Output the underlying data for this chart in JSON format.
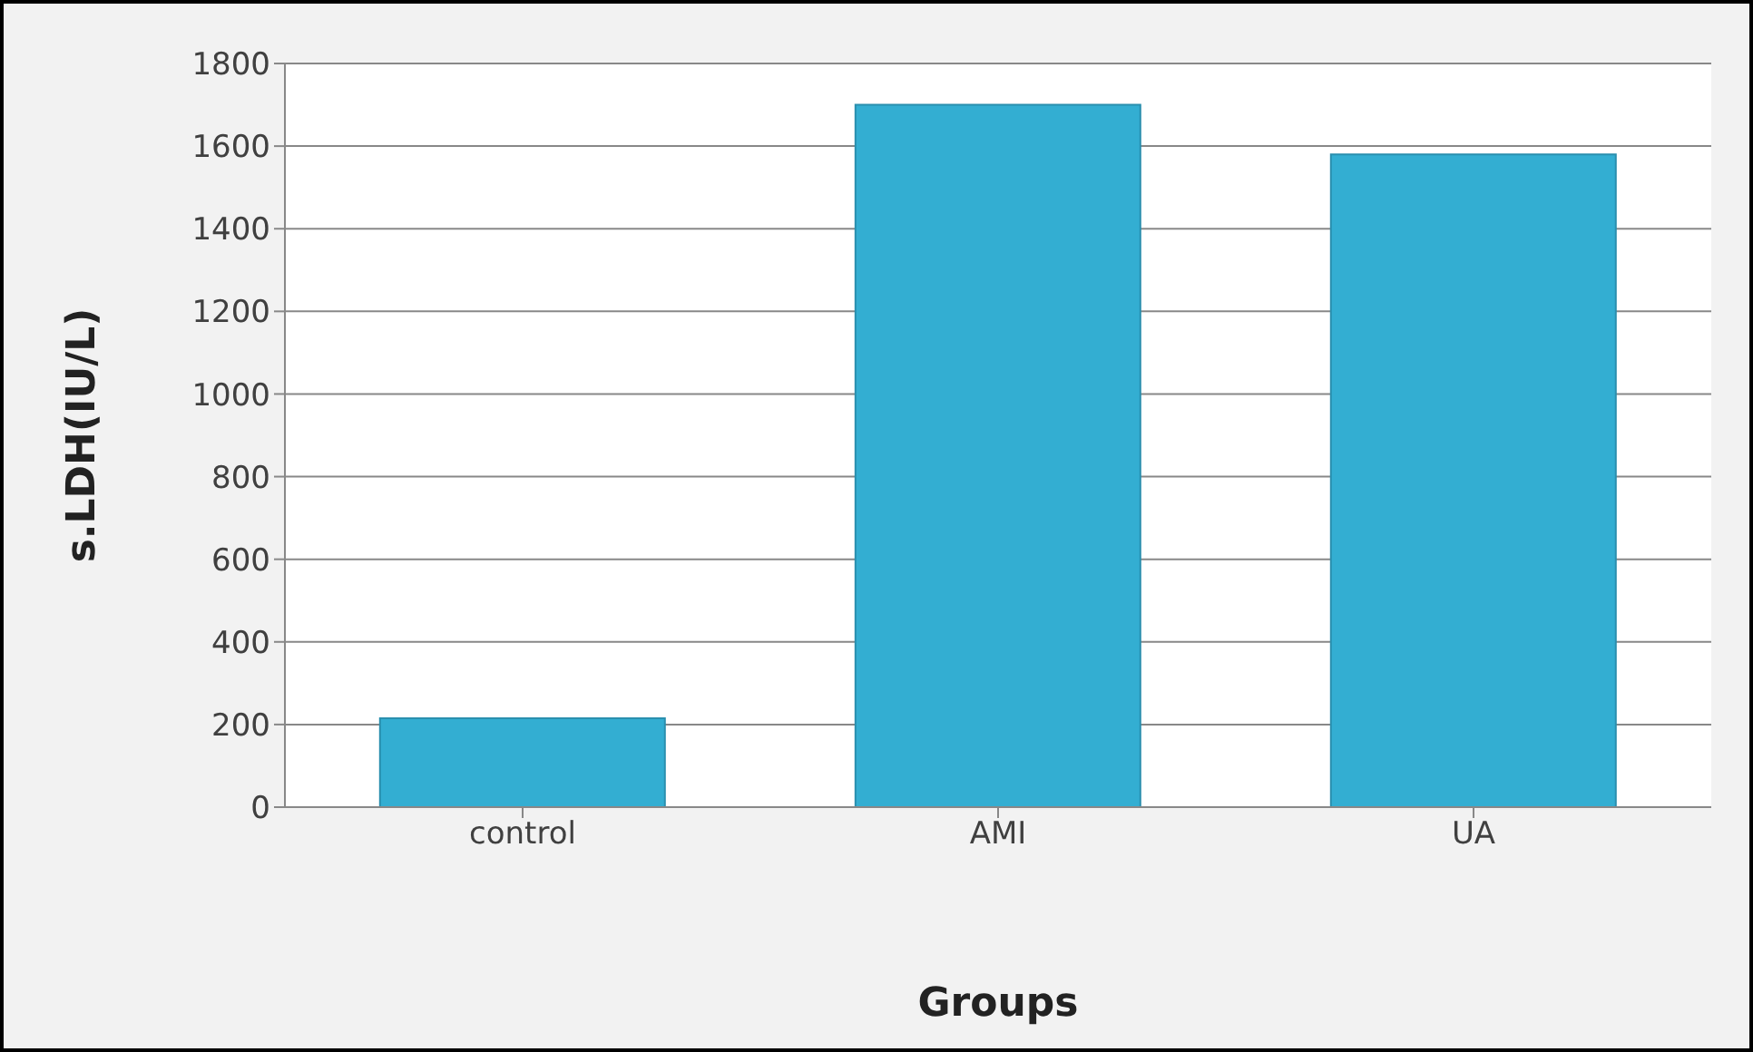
{
  "chart_data": {
    "type": "bar",
    "xlabel": "Groups",
    "ylabel": "s.LDH(IU/L)",
    "categories": [
      "control",
      "AMI",
      "UA"
    ],
    "values": [
      215,
      1700,
      1580
    ],
    "color": "#33aed2",
    "ylim": [
      0,
      1800
    ],
    "yticks": [
      0,
      200,
      400,
      600,
      800,
      1000,
      1200,
      1400,
      1600,
      1800
    ],
    "grid": "y"
  }
}
